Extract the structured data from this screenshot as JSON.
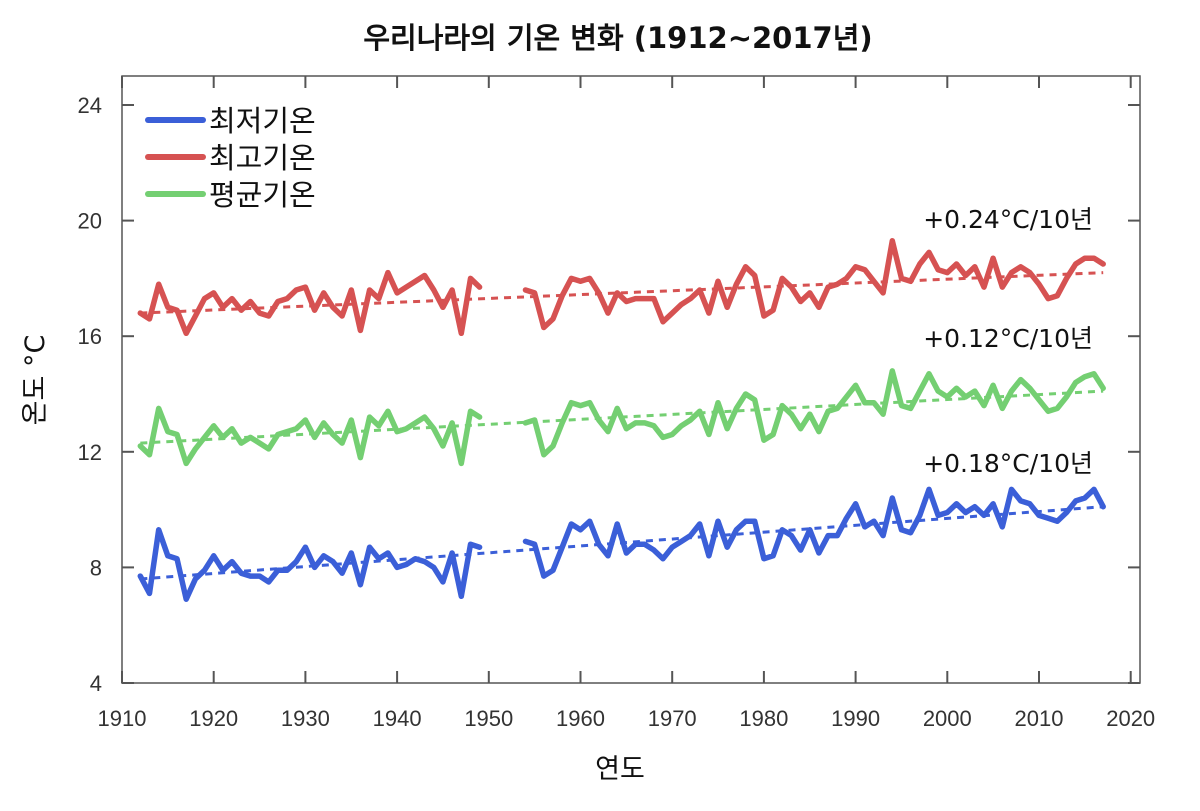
{
  "chart_data": {
    "type": "line",
    "title": "우리나라의 기온 변화 (1912~2017년)",
    "xlabel": "연도",
    "ylabel": "온도 °C",
    "xlim": [
      1910,
      2020
    ],
    "ylim": [
      4,
      25
    ],
    "xticks": [
      1910,
      1920,
      1930,
      1940,
      1950,
      1960,
      1970,
      1980,
      1990,
      2000,
      2010,
      2020
    ],
    "yticks": [
      4,
      8,
      12,
      16,
      20,
      24
    ],
    "grid": false,
    "legend_placement": "top-left",
    "x": [
      1912,
      1913,
      1914,
      1915,
      1916,
      1917,
      1918,
      1919,
      1920,
      1921,
      1922,
      1923,
      1924,
      1925,
      1926,
      1927,
      1928,
      1929,
      1930,
      1931,
      1932,
      1933,
      1934,
      1935,
      1936,
      1937,
      1938,
      1939,
      1940,
      1941,
      1942,
      1943,
      1944,
      1945,
      1946,
      1947,
      1948,
      1949,
      1954,
      1955,
      1956,
      1957,
      1958,
      1959,
      1960,
      1961,
      1962,
      1963,
      1964,
      1965,
      1966,
      1967,
      1968,
      1969,
      1970,
      1971,
      1972,
      1973,
      1974,
      1975,
      1976,
      1977,
      1978,
      1979,
      1980,
      1981,
      1982,
      1983,
      1984,
      1985,
      1986,
      1987,
      1988,
      1989,
      1990,
      1991,
      1992,
      1993,
      1994,
      1995,
      1996,
      1997,
      1998,
      1999,
      2000,
      2001,
      2002,
      2003,
      2004,
      2005,
      2006,
      2007,
      2008,
      2009,
      2010,
      2011,
      2012,
      2013,
      2014,
      2015,
      2016,
      2017
    ],
    "series": [
      {
        "name": "최저기온",
        "color": "#3b5fd8",
        "trend_label": "+0.24°C/10년",
        "trend": [
          7.6,
          10.1
        ],
        "values": [
          7.7,
          7.1,
          9.3,
          8.4,
          8.3,
          6.9,
          7.6,
          7.9,
          8.4,
          7.9,
          8.2,
          7.8,
          7.7,
          7.7,
          7.5,
          7.9,
          7.9,
          8.2,
          8.7,
          8.0,
          8.4,
          8.2,
          7.8,
          8.5,
          7.4,
          8.7,
          8.3,
          8.5,
          8.0,
          8.1,
          8.3,
          8.2,
          8.0,
          7.5,
          8.5,
          7.0,
          8.8,
          8.7,
          8.9,
          8.8,
          7.7,
          7.9,
          8.7,
          9.5,
          9.3,
          9.6,
          8.8,
          8.4,
          9.5,
          8.5,
          8.8,
          8.8,
          8.6,
          8.3,
          8.7,
          8.9,
          9.1,
          9.5,
          8.4,
          9.6,
          8.7,
          9.3,
          9.6,
          9.6,
          8.3,
          8.4,
          9.3,
          9.1,
          8.6,
          9.3,
          8.5,
          9.1,
          9.1,
          9.7,
          10.2,
          9.4,
          9.6,
          9.1,
          10.4,
          9.3,
          9.2,
          9.8,
          10.7,
          9.8,
          9.9,
          10.2,
          9.9,
          10.1,
          9.8,
          10.2,
          9.4,
          10.7,
          10.3,
          10.2,
          9.8,
          9.7,
          9.6,
          9.9,
          10.3,
          10.4,
          10.7,
          10.1
        ]
      },
      {
        "name": "최고기온",
        "color": "#d65252",
        "trend_label": "+0.12°C/10년",
        "trend": [
          16.8,
          18.2
        ],
        "values": [
          16.8,
          16.6,
          17.8,
          17.0,
          16.9,
          16.1,
          16.7,
          17.3,
          17.5,
          17.0,
          17.3,
          16.9,
          17.2,
          16.8,
          16.7,
          17.2,
          17.3,
          17.6,
          17.7,
          16.9,
          17.5,
          17.0,
          16.7,
          17.6,
          16.2,
          17.6,
          17.3,
          18.2,
          17.5,
          17.7,
          17.9,
          18.1,
          17.6,
          17.0,
          17.6,
          16.1,
          18.0,
          17.7,
          17.6,
          17.5,
          16.3,
          16.6,
          17.4,
          18.0,
          17.9,
          18.0,
          17.5,
          16.8,
          17.5,
          17.2,
          17.3,
          17.3,
          17.3,
          16.5,
          16.8,
          17.1,
          17.3,
          17.6,
          16.8,
          17.9,
          17.0,
          17.8,
          18.4,
          18.1,
          16.7,
          16.9,
          18.0,
          17.7,
          17.2,
          17.5,
          17.0,
          17.7,
          17.8,
          18.0,
          18.4,
          18.3,
          17.9,
          17.5,
          19.3,
          18.0,
          17.9,
          18.5,
          18.9,
          18.3,
          18.2,
          18.5,
          18.1,
          18.4,
          17.7,
          18.7,
          17.7,
          18.2,
          18.4,
          18.2,
          17.8,
          17.3,
          17.4,
          18.0,
          18.5,
          18.7,
          18.7,
          18.5
        ]
      },
      {
        "name": "평균기온",
        "color": "#74cf72",
        "trend_label": "+0.18°C/10년",
        "trend": [
          12.3,
          14.1
        ],
        "values": [
          12.2,
          11.9,
          13.5,
          12.7,
          12.6,
          11.6,
          12.1,
          12.5,
          12.9,
          12.5,
          12.8,
          12.3,
          12.5,
          12.3,
          12.1,
          12.6,
          12.7,
          12.8,
          13.1,
          12.5,
          13.0,
          12.6,
          12.3,
          13.1,
          11.8,
          13.2,
          12.9,
          13.4,
          12.7,
          12.8,
          13.0,
          13.2,
          12.8,
          12.2,
          13.0,
          11.6,
          13.4,
          13.2,
          13.0,
          13.1,
          11.9,
          12.2,
          13.0,
          13.7,
          13.6,
          13.7,
          13.1,
          12.7,
          13.5,
          12.8,
          13.0,
          13.0,
          12.9,
          12.5,
          12.6,
          12.9,
          13.1,
          13.4,
          12.6,
          13.7,
          12.8,
          13.5,
          14.0,
          13.8,
          12.4,
          12.6,
          13.6,
          13.3,
          12.8,
          13.3,
          12.7,
          13.4,
          13.5,
          13.9,
          14.3,
          13.7,
          13.7,
          13.3,
          14.8,
          13.6,
          13.5,
          14.1,
          14.7,
          14.1,
          13.9,
          14.2,
          13.9,
          14.1,
          13.6,
          14.3,
          13.5,
          14.1,
          14.5,
          14.2,
          13.8,
          13.4,
          13.5,
          13.9,
          14.4,
          14.6,
          14.7,
          14.2
        ]
      }
    ]
  }
}
